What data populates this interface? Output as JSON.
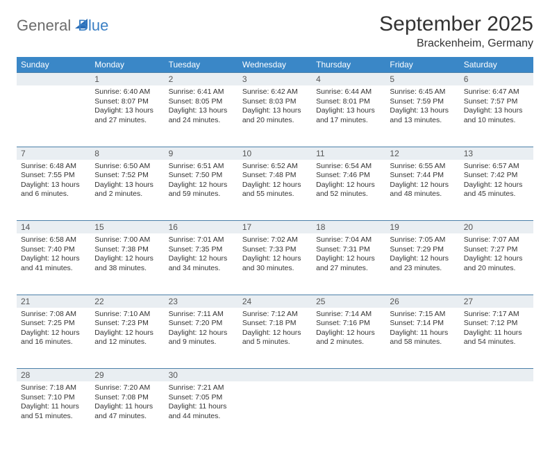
{
  "brand": {
    "part1": "General",
    "part2": "Blue"
  },
  "title": "September 2025",
  "location": "Brackenheim, Germany",
  "colors": {
    "header_bg": "#3a87c7",
    "header_fg": "#ffffff",
    "daynum_bg": "#e9eef2",
    "row_border": "#4a7fa8",
    "logo_gray": "#6b6b6b",
    "logo_blue": "#3a7fc4"
  },
  "weekdays": [
    "Sunday",
    "Monday",
    "Tuesday",
    "Wednesday",
    "Thursday",
    "Friday",
    "Saturday"
  ],
  "weeks": [
    [
      null,
      {
        "n": "1",
        "sunrise": "6:40 AM",
        "sunset": "8:07 PM",
        "daylight": "13 hours and 27 minutes."
      },
      {
        "n": "2",
        "sunrise": "6:41 AM",
        "sunset": "8:05 PM",
        "daylight": "13 hours and 24 minutes."
      },
      {
        "n": "3",
        "sunrise": "6:42 AM",
        "sunset": "8:03 PM",
        "daylight": "13 hours and 20 minutes."
      },
      {
        "n": "4",
        "sunrise": "6:44 AM",
        "sunset": "8:01 PM",
        "daylight": "13 hours and 17 minutes."
      },
      {
        "n": "5",
        "sunrise": "6:45 AM",
        "sunset": "7:59 PM",
        "daylight": "13 hours and 13 minutes."
      },
      {
        "n": "6",
        "sunrise": "6:47 AM",
        "sunset": "7:57 PM",
        "daylight": "13 hours and 10 minutes."
      }
    ],
    [
      {
        "n": "7",
        "sunrise": "6:48 AM",
        "sunset": "7:55 PM",
        "daylight": "13 hours and 6 minutes."
      },
      {
        "n": "8",
        "sunrise": "6:50 AM",
        "sunset": "7:52 PM",
        "daylight": "13 hours and 2 minutes."
      },
      {
        "n": "9",
        "sunrise": "6:51 AM",
        "sunset": "7:50 PM",
        "daylight": "12 hours and 59 minutes."
      },
      {
        "n": "10",
        "sunrise": "6:52 AM",
        "sunset": "7:48 PM",
        "daylight": "12 hours and 55 minutes."
      },
      {
        "n": "11",
        "sunrise": "6:54 AM",
        "sunset": "7:46 PM",
        "daylight": "12 hours and 52 minutes."
      },
      {
        "n": "12",
        "sunrise": "6:55 AM",
        "sunset": "7:44 PM",
        "daylight": "12 hours and 48 minutes."
      },
      {
        "n": "13",
        "sunrise": "6:57 AM",
        "sunset": "7:42 PM",
        "daylight": "12 hours and 45 minutes."
      }
    ],
    [
      {
        "n": "14",
        "sunrise": "6:58 AM",
        "sunset": "7:40 PM",
        "daylight": "12 hours and 41 minutes."
      },
      {
        "n": "15",
        "sunrise": "7:00 AM",
        "sunset": "7:38 PM",
        "daylight": "12 hours and 38 minutes."
      },
      {
        "n": "16",
        "sunrise": "7:01 AM",
        "sunset": "7:35 PM",
        "daylight": "12 hours and 34 minutes."
      },
      {
        "n": "17",
        "sunrise": "7:02 AM",
        "sunset": "7:33 PM",
        "daylight": "12 hours and 30 minutes."
      },
      {
        "n": "18",
        "sunrise": "7:04 AM",
        "sunset": "7:31 PM",
        "daylight": "12 hours and 27 minutes."
      },
      {
        "n": "19",
        "sunrise": "7:05 AM",
        "sunset": "7:29 PM",
        "daylight": "12 hours and 23 minutes."
      },
      {
        "n": "20",
        "sunrise": "7:07 AM",
        "sunset": "7:27 PM",
        "daylight": "12 hours and 20 minutes."
      }
    ],
    [
      {
        "n": "21",
        "sunrise": "7:08 AM",
        "sunset": "7:25 PM",
        "daylight": "12 hours and 16 minutes."
      },
      {
        "n": "22",
        "sunrise": "7:10 AM",
        "sunset": "7:23 PM",
        "daylight": "12 hours and 12 minutes."
      },
      {
        "n": "23",
        "sunrise": "7:11 AM",
        "sunset": "7:20 PM",
        "daylight": "12 hours and 9 minutes."
      },
      {
        "n": "24",
        "sunrise": "7:12 AM",
        "sunset": "7:18 PM",
        "daylight": "12 hours and 5 minutes."
      },
      {
        "n": "25",
        "sunrise": "7:14 AM",
        "sunset": "7:16 PM",
        "daylight": "12 hours and 2 minutes."
      },
      {
        "n": "26",
        "sunrise": "7:15 AM",
        "sunset": "7:14 PM",
        "daylight": "11 hours and 58 minutes."
      },
      {
        "n": "27",
        "sunrise": "7:17 AM",
        "sunset": "7:12 PM",
        "daylight": "11 hours and 54 minutes."
      }
    ],
    [
      {
        "n": "28",
        "sunrise": "7:18 AM",
        "sunset": "7:10 PM",
        "daylight": "11 hours and 51 minutes."
      },
      {
        "n": "29",
        "sunrise": "7:20 AM",
        "sunset": "7:08 PM",
        "daylight": "11 hours and 47 minutes."
      },
      {
        "n": "30",
        "sunrise": "7:21 AM",
        "sunset": "7:05 PM",
        "daylight": "11 hours and 44 minutes."
      },
      null,
      null,
      null,
      null
    ]
  ],
  "labels": {
    "sunrise": "Sunrise:",
    "sunset": "Sunset:",
    "daylight": "Daylight:"
  }
}
